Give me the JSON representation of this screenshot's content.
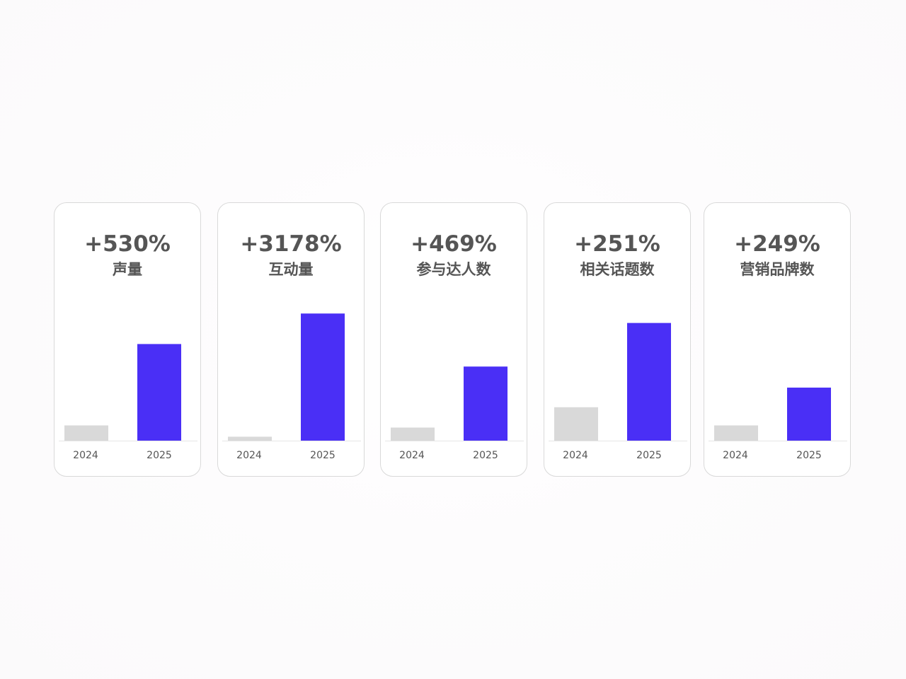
{
  "colors": {
    "bar_2024": "#d9d9d9",
    "bar_2025": "#4a2ff6",
    "text": "#555555",
    "tick_text": "#555555",
    "baseline": "#e6e6e6",
    "card_border": "#d9d9d9"
  },
  "chart_data": [
    {
      "type": "bar",
      "title": "+530%",
      "subtitle": "声量",
      "categories": [
        "2024",
        "2025"
      ],
      "values": [
        21,
        133
      ],
      "ylim": [
        0,
        185
      ]
    },
    {
      "type": "bar",
      "title": "+3178%",
      "subtitle": "互动量",
      "categories": [
        "2024",
        "2025"
      ],
      "values": [
        5.4,
        175
      ],
      "ylim": [
        0,
        185
      ]
    },
    {
      "type": "bar",
      "title": "+469%",
      "subtitle": "参与达人数",
      "categories": [
        "2024",
        "2025"
      ],
      "values": [
        18,
        102
      ],
      "ylim": [
        0,
        185
      ]
    },
    {
      "type": "bar",
      "title": "+251%",
      "subtitle": "相关话题数",
      "categories": [
        "2024",
        "2025"
      ],
      "values": [
        46,
        162
      ],
      "ylim": [
        0,
        185
      ]
    },
    {
      "type": "bar",
      "title": "+249%",
      "subtitle": "营销品牌数",
      "categories": [
        "2024",
        "2025"
      ],
      "values": [
        21,
        73
      ],
      "ylim": [
        0,
        185
      ]
    }
  ]
}
